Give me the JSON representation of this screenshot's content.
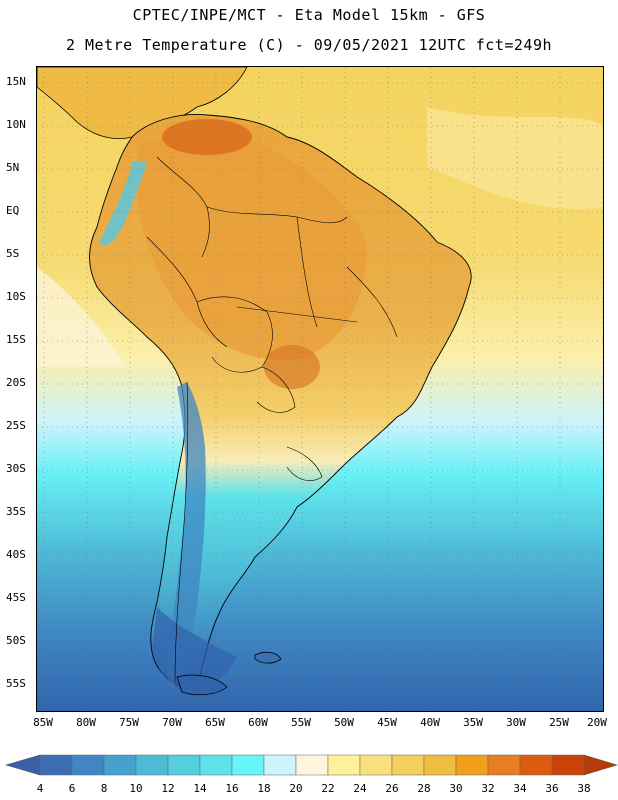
{
  "header": {
    "title": "CPTEC/INPE/MCT -  Eta Model 15km - GFS",
    "subtitle": "2 Metre Temperature (C) - 09/05/2021 12UTC fct=249h"
  },
  "map": {
    "variable": "2 Metre Temperature",
    "units": "C",
    "ocean_warm_color": "#f6d25e",
    "land_hot_color": "#e8a33c",
    "hotspot_color": "#d96a1c",
    "cold_color": "#2f6fb5",
    "lat_labels": [
      "15N",
      "10N",
      "5N",
      "EQ",
      "5S",
      "10S",
      "15S",
      "20S",
      "25S",
      "30S",
      "35S",
      "40S",
      "45S",
      "50S",
      "55S"
    ],
    "lon_labels": [
      "85W",
      "80W",
      "75W",
      "70W",
      "65W",
      "60W",
      "55W",
      "50W",
      "45W",
      "40W",
      "35W",
      "30W",
      "25W",
      "20W"
    ]
  },
  "colorbar": {
    "labels": [
      "4",
      "6",
      "8",
      "10",
      "12",
      "14",
      "16",
      "18",
      "20",
      "22",
      "24",
      "26",
      "28",
      "30",
      "32",
      "34",
      "36",
      "38"
    ],
    "low_arrow_color": "#3a5fa8",
    "high_arrow_color": "#b83a08",
    "colors": [
      "#3c6db2",
      "#3f86c2",
      "#46a1cc",
      "#4dbad6",
      "#55cfe0",
      "#5ee2ea",
      "#66f5f8",
      "#cbf4fb",
      "#fdf6dd",
      "#fdf29a",
      "#f8e07c",
      "#f3cf5e",
      "#efbd3f",
      "#ef9f1a",
      "#e87d22",
      "#db5c10",
      "#c8420a"
    ]
  }
}
